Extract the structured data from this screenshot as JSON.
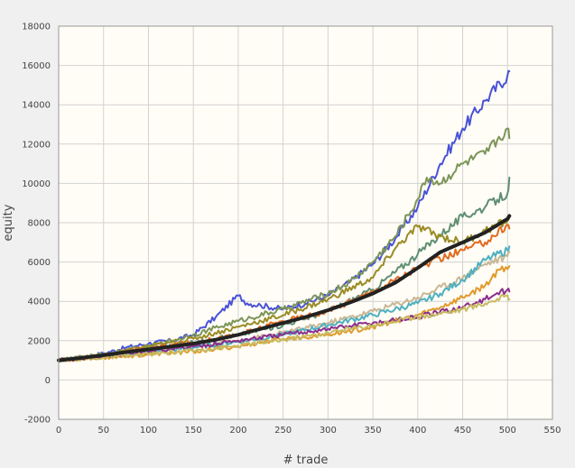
{
  "chart_data": {
    "type": "line",
    "title": "",
    "xlabel": "# trade",
    "ylabel": "equity",
    "xlim": [
      0,
      550
    ],
    "ylim": [
      -2000,
      18000
    ],
    "x_ticks": [
      0,
      50,
      100,
      150,
      200,
      250,
      300,
      350,
      400,
      450,
      500,
      550
    ],
    "y_ticks": [
      -2000,
      0,
      2000,
      4000,
      6000,
      8000,
      10000,
      12000,
      14000,
      16000,
      18000
    ],
    "grid": true,
    "legend": "none",
    "colors": {
      "plot_background": "#fffdf6",
      "page_background": "#f0f0f0",
      "grid": "#d2d2d2",
      "frame": "#999999"
    },
    "series": [
      {
        "color": "#4a52d8",
        "width": 2,
        "x": [
          0,
          25,
          50,
          75,
          100,
          125,
          150,
          175,
          200,
          210,
          225,
          250,
          275,
          300,
          325,
          350,
          375,
          400,
          425,
          450,
          475,
          500,
          502
        ],
        "y": [
          1000,
          1150,
          1350,
          1650,
          1850,
          2000,
          2300,
          3200,
          4300,
          3900,
          3800,
          3600,
          3900,
          4300,
          5000,
          5900,
          7200,
          8800,
          11000,
          12800,
          14200,
          15500,
          15700
        ]
      },
      {
        "color": "#7d9558",
        "width": 2,
        "x": [
          0,
          50,
          100,
          150,
          200,
          250,
          300,
          325,
          350,
          375,
          400,
          410,
          425,
          450,
          475,
          500,
          502
        ],
        "y": [
          1000,
          1300,
          1700,
          2300,
          3000,
          3600,
          4400,
          5000,
          6000,
          7300,
          9200,
          10300,
          10000,
          11000,
          11500,
          12800,
          12300
        ]
      },
      {
        "color": "#5f8e72",
        "width": 2,
        "x": [
          0,
          50,
          100,
          150,
          200,
          250,
          300,
          350,
          400,
          425,
          450,
          475,
          500,
          502
        ],
        "y": [
          1000,
          1250,
          1600,
          1900,
          2300,
          2800,
          3500,
          4600,
          6400,
          7400,
          8300,
          8800,
          9500,
          10300
        ]
      },
      {
        "color": "#9a8c25",
        "width": 2,
        "x": [
          0,
          50,
          100,
          150,
          200,
          250,
          300,
          350,
          375,
          400,
          425,
          450,
          475,
          500,
          502
        ],
        "y": [
          1000,
          1250,
          1700,
          2100,
          2700,
          3300,
          4100,
          5200,
          6700,
          7800,
          7300,
          7000,
          7600,
          8100,
          8300
        ]
      },
      {
        "color": "#e26a1f",
        "width": 2,
        "x": [
          0,
          50,
          100,
          150,
          200,
          250,
          300,
          350,
          400,
          450,
          475,
          500,
          502
        ],
        "y": [
          1000,
          1250,
          1600,
          1900,
          2300,
          3000,
          3500,
          4500,
          5700,
          6600,
          7000,
          7900,
          7700
        ]
      },
      {
        "color": "#c9b795",
        "width": 2,
        "x": [
          0,
          50,
          100,
          150,
          200,
          250,
          300,
          350,
          400,
          450,
          475,
          500,
          502
        ],
        "y": [
          1000,
          1200,
          1450,
          1700,
          2000,
          2400,
          2900,
          3500,
          4200,
          5200,
          5900,
          6300,
          6500
        ]
      },
      {
        "color": "#4fb0c0",
        "width": 2,
        "x": [
          0,
          50,
          100,
          150,
          200,
          250,
          300,
          350,
          400,
          425,
          450,
          475,
          500,
          502
        ],
        "y": [
          1000,
          1200,
          1400,
          1650,
          1950,
          2300,
          2800,
          3300,
          3900,
          4400,
          5100,
          6100,
          6600,
          6800
        ]
      },
      {
        "color": "#e09a2c",
        "width": 2,
        "x": [
          0,
          50,
          100,
          150,
          200,
          250,
          300,
          350,
          400,
          425,
          450,
          475,
          490,
          502
        ],
        "y": [
          1000,
          1150,
          1300,
          1450,
          1700,
          2100,
          2300,
          2700,
          3300,
          3700,
          4200,
          4800,
          5600,
          5800
        ]
      },
      {
        "color": "#8b2d8c",
        "width": 2,
        "x": [
          0,
          50,
          100,
          150,
          200,
          250,
          300,
          350,
          400,
          450,
          475,
          500,
          502
        ],
        "y": [
          1000,
          1200,
          1450,
          1700,
          2000,
          2300,
          2600,
          2900,
          3200,
          3700,
          4100,
          4600,
          4500
        ]
      },
      {
        "color": "#c7bb62",
        "width": 2,
        "x": [
          0,
          50,
          100,
          150,
          200,
          250,
          300,
          350,
          400,
          450,
          475,
          500,
          502
        ],
        "y": [
          1000,
          1150,
          1300,
          1500,
          1750,
          2050,
          2400,
          2800,
          3200,
          3600,
          3900,
          4300,
          4100
        ]
      },
      {
        "color": "#222222",
        "width": 4,
        "x": [
          0,
          25,
          50,
          75,
          100,
          125,
          150,
          175,
          200,
          225,
          250,
          275,
          300,
          325,
          350,
          375,
          400,
          425,
          450,
          475,
          500,
          502
        ],
        "y": [
          1000,
          1120,
          1260,
          1420,
          1560,
          1700,
          1850,
          2050,
          2300,
          2600,
          2900,
          3200,
          3550,
          3950,
          4400,
          4950,
          5700,
          6500,
          7000,
          7500,
          8200,
          8350
        ]
      }
    ]
  }
}
